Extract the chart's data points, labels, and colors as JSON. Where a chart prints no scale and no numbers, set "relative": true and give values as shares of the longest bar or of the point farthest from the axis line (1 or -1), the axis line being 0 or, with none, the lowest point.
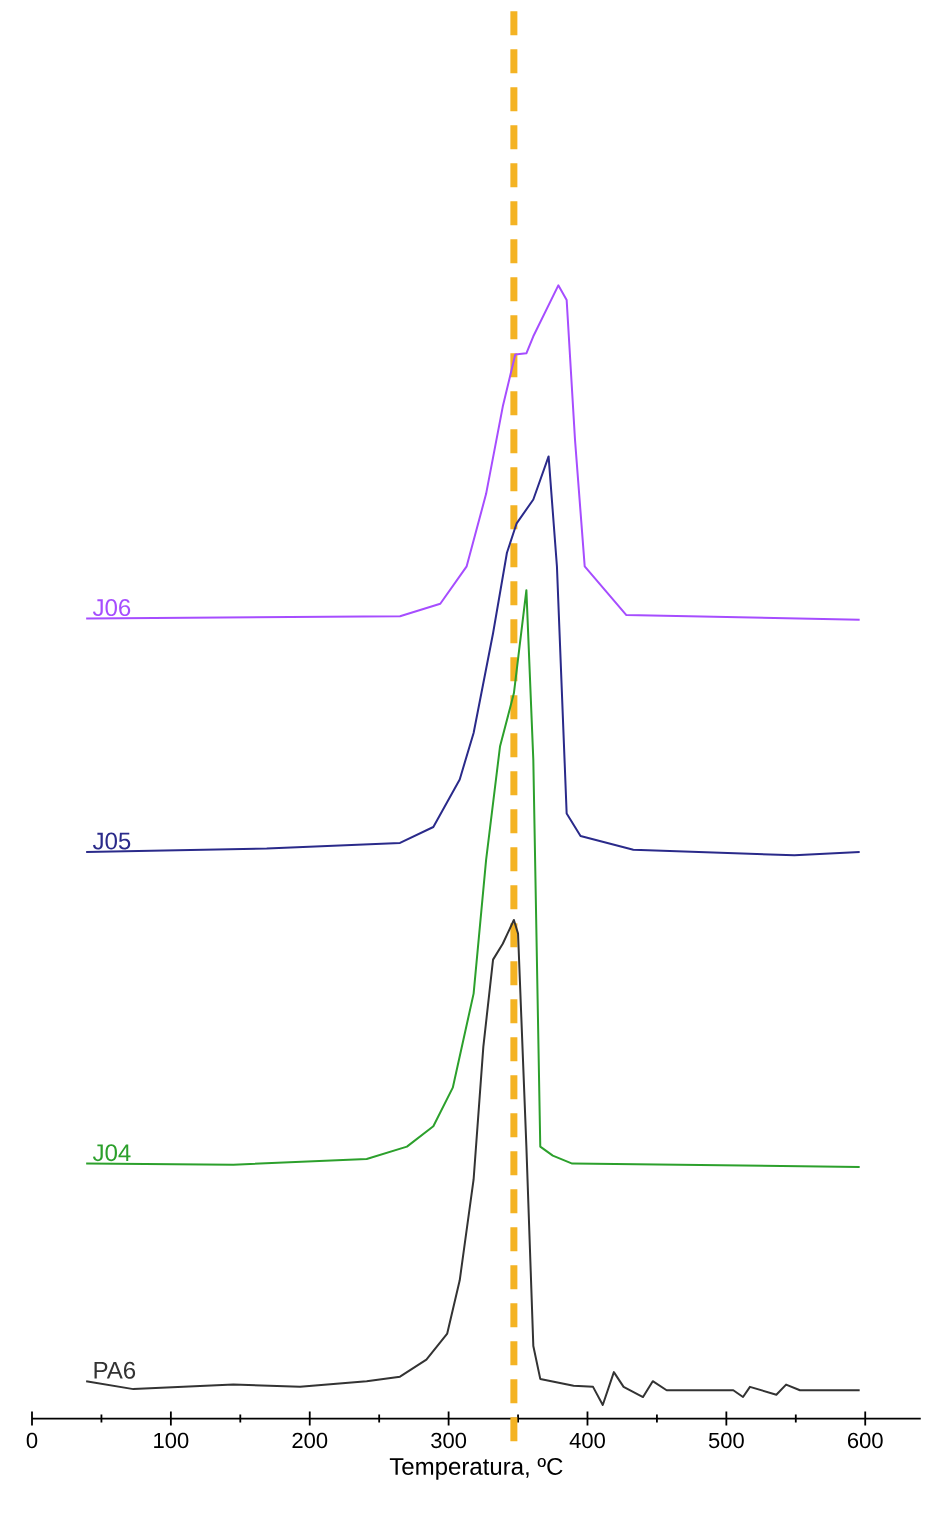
{
  "chart_data": {
    "type": "line",
    "xlabel": "Temperatura, ºC",
    "relative": true,
    "xlim": [
      0,
      640
    ],
    "xticks": [
      0,
      100,
      200,
      300,
      400,
      500,
      600
    ],
    "grid": false,
    "legend": false,
    "marker": "none",
    "line_style": "solid",
    "ref_lines": [
      {
        "axis": "x",
        "value": 347,
        "color": "#f4b323",
        "line_style": "dashed"
      }
    ],
    "series": [
      {
        "name": "J06",
        "color": "#a64dff",
        "x": [
          39,
          265,
          294,
          313,
          327,
          339,
          348,
          356,
          361,
          379,
          385,
          391,
          398,
          414,
          428,
          596
        ],
        "values": [
          0.706,
          0.708,
          0.719,
          0.752,
          0.816,
          0.893,
          0.939,
          0.94,
          0.955,
          1.0,
          0.987,
          0.864,
          0.752,
          0.729,
          0.709,
          0.705
        ]
      },
      {
        "name": "J05",
        "color": "#2a2a8a",
        "x": [
          39,
          169,
          265,
          289,
          308,
          318,
          332,
          342,
          349,
          361,
          372,
          378,
          385,
          395,
          433,
          549,
          596
        ],
        "values": [
          0.5,
          0.503,
          0.508,
          0.522,
          0.564,
          0.605,
          0.693,
          0.764,
          0.79,
          0.811,
          0.849,
          0.752,
          0.534,
          0.514,
          0.502,
          0.497,
          0.5
        ]
      },
      {
        "name": "J04",
        "color": "#2ca02c",
        "x": [
          39,
          145,
          241,
          270,
          289,
          303,
          318,
          327,
          337,
          347,
          356,
          361,
          366,
          375,
          389,
          596
        ],
        "values": [
          0.225,
          0.224,
          0.229,
          0.24,
          0.258,
          0.292,
          0.375,
          0.493,
          0.593,
          0.64,
          0.731,
          0.581,
          0.24,
          0.232,
          0.225,
          0.222
        ]
      },
      {
        "name": "PA6",
        "color": "#333333",
        "x": [
          39,
          73,
          145,
          193,
          241,
          265,
          284,
          299,
          308,
          318,
          325,
          332,
          339,
          347,
          350,
          356,
          361,
          366,
          390,
          404,
          411,
          419,
          426,
          440,
          447,
          457,
          505,
          512,
          517,
          536,
          543,
          553,
          596
        ],
        "values": [
          0.033,
          0.026,
          0.03,
          0.028,
          0.033,
          0.037,
          0.052,
          0.075,
          0.122,
          0.211,
          0.328,
          0.405,
          0.419,
          0.44,
          0.428,
          0.24,
          0.064,
          0.035,
          0.029,
          0.028,
          0.012,
          0.041,
          0.028,
          0.019,
          0.033,
          0.025,
          0.025,
          0.019,
          0.028,
          0.021,
          0.03,
          0.025,
          0.025
        ]
      }
    ]
  }
}
